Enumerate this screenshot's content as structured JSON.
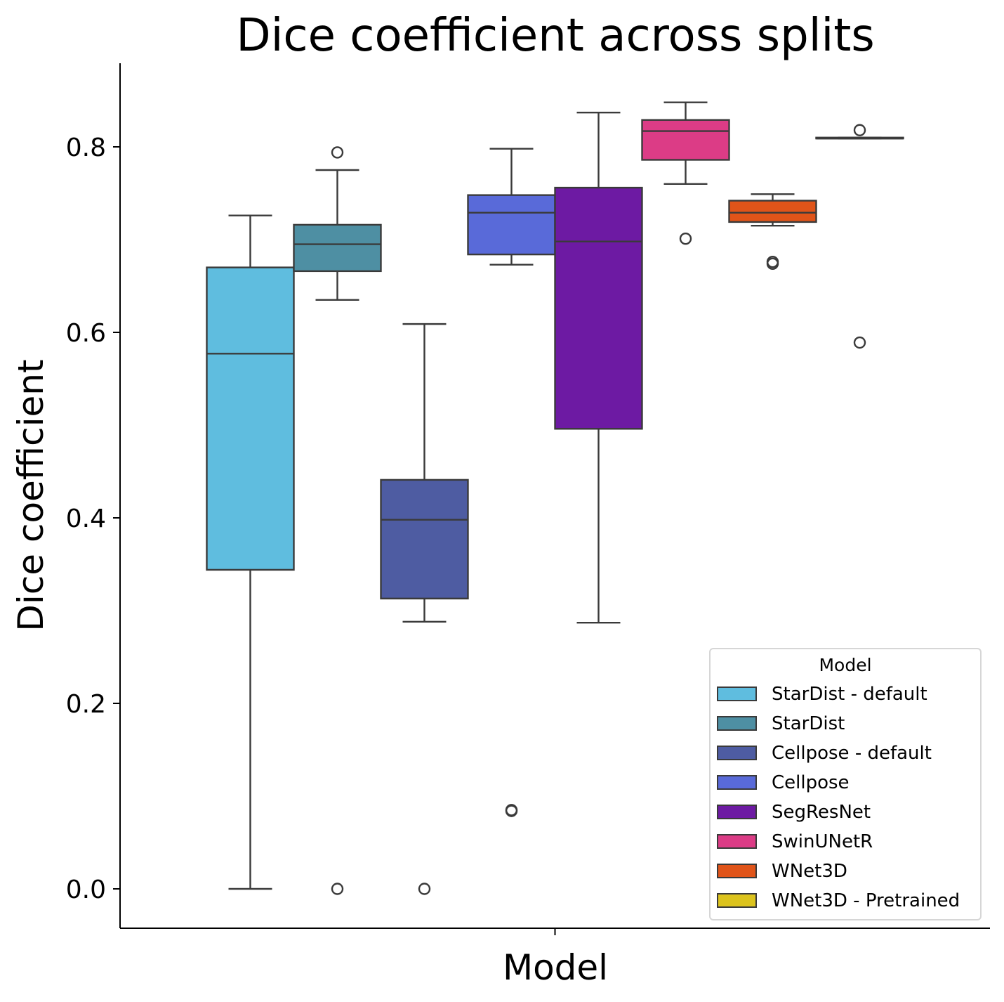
{
  "chart_data": {
    "type": "box",
    "title": "Dice coefficient across splits",
    "xlabel": "Model",
    "ylabel": "Dice coefficient",
    "ylim": [
      -0.042,
      0.89
    ],
    "yticks": [
      "0.0",
      "0.2",
      "0.4",
      "0.6",
      "0.8"
    ],
    "xticks": [
      ""
    ],
    "legend": {
      "title": "Model",
      "position": "lower-right"
    },
    "series": [
      {
        "name": "StarDist - default",
        "color": "#5FBDDF",
        "whislo": 0.0,
        "q1": 0.344,
        "median": 0.577,
        "q3": 0.67,
        "whishi": 0.726,
        "fliers": []
      },
      {
        "name": "StarDist",
        "color": "#4E8FA3",
        "whislo": 0.635,
        "q1": 0.666,
        "median": 0.695,
        "q3": 0.716,
        "whishi": 0.775,
        "fliers": [
          0.794,
          0.0
        ]
      },
      {
        "name": "Cellpose - default",
        "color": "#4E5CA2",
        "whislo": 0.288,
        "q1": 0.313,
        "median": 0.398,
        "q3": 0.441,
        "whishi": 0.609,
        "fliers": [
          0.0
        ]
      },
      {
        "name": "Cellpose",
        "color": "#596AD9",
        "whislo": 0.673,
        "q1": 0.684,
        "median": 0.729,
        "q3": 0.748,
        "whishi": 0.798,
        "fliers": [
          0.085,
          0.084
        ]
      },
      {
        "name": "SegResNet",
        "color": "#6D1AA3",
        "whislo": 0.287,
        "q1": 0.496,
        "median": 0.698,
        "q3": 0.756,
        "whishi": 0.837,
        "fliers": []
      },
      {
        "name": "SwinUNetR",
        "color": "#DC3C86",
        "whislo": 0.76,
        "q1": 0.786,
        "median": 0.817,
        "q3": 0.829,
        "whishi": 0.848,
        "fliers": [
          0.701
        ]
      },
      {
        "name": "WNet3D",
        "color": "#E05419",
        "whislo": 0.715,
        "q1": 0.719,
        "median": 0.729,
        "q3": 0.742,
        "whishi": 0.749,
        "fliers": [
          0.676,
          0.674
        ]
      },
      {
        "name": "WNet3D - Pretrained",
        "color": "#DCC31D",
        "whislo": 0.809,
        "q1": 0.809,
        "median": 0.809,
        "q3": 0.81,
        "whishi": 0.81,
        "fliers": [
          0.818,
          0.589
        ]
      }
    ]
  }
}
